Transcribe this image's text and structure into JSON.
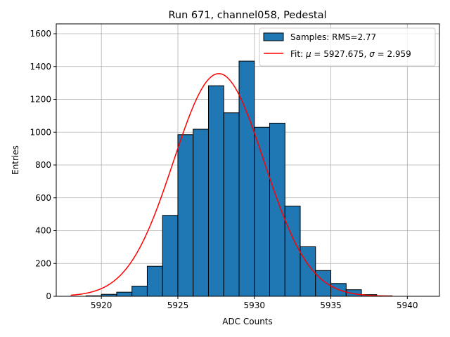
{
  "chart_data": {
    "type": "bar",
    "title": "Run 671, channel058, Pedestal",
    "xlabel": "ADC Counts",
    "ylabel": "Entries",
    "xlim": [
      5917.05,
      5942.1
    ],
    "ylim": [
      0,
      1660
    ],
    "xticks": [
      5920,
      5925,
      5930,
      5935,
      5940
    ],
    "yticks": [
      0,
      200,
      400,
      600,
      800,
      1000,
      1200,
      1400,
      1600
    ],
    "grid": true,
    "legend_position": "top-right",
    "bin_width": 1,
    "bin_edges_start": 5919,
    "counts": [
      3,
      12,
      25,
      62,
      183,
      493,
      985,
      1018,
      1283,
      1118,
      1433,
      1030,
      1055,
      550,
      302,
      157,
      78,
      40,
      10,
      3
    ],
    "histogram_name": "Samples: RMS=2.77",
    "fit": {
      "name_prefix": "Fit: ",
      "name_mu_symbol": "μ",
      "name_middle": " = 5927.675, ",
      "name_sigma_symbol": "σ",
      "name_suffix": " = 2.959",
      "mu": 5927.675,
      "sigma": 2.959,
      "amplitude": 1357,
      "x_range": [
        5918,
        5939
      ]
    },
    "colors": {
      "bar_fill": "#1f77b4",
      "bar_edge": "#000000",
      "fit_line": "#ff0000",
      "grid": "#b0b0b0"
    }
  }
}
